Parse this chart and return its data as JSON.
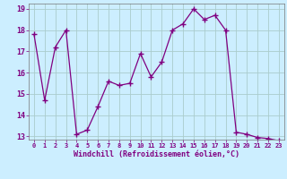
{
  "x": [
    0,
    1,
    2,
    3,
    4,
    5,
    6,
    7,
    8,
    9,
    10,
    11,
    12,
    13,
    14,
    15,
    16,
    17,
    18,
    19,
    20,
    21,
    22,
    23
  ],
  "y": [
    17.8,
    14.7,
    17.2,
    18.0,
    13.1,
    13.3,
    14.4,
    15.6,
    15.4,
    15.5,
    16.9,
    15.8,
    16.5,
    18.0,
    18.3,
    19.0,
    18.5,
    18.7,
    18.0,
    13.2,
    13.1,
    12.95,
    12.9,
    12.8
  ],
  "line_color": "#800080",
  "marker_color": "#800080",
  "bg_color": "#cceeff",
  "grid_color": "#aacccc",
  "xlabel": "Windchill (Refroidissement éolien,°C)",
  "xlabel_color": "#800080",
  "tick_color": "#800080",
  "ylim": [
    13,
    19
  ],
  "xlim": [
    0,
    23
  ],
  "yticks": [
    13,
    14,
    15,
    16,
    17,
    18,
    19
  ],
  "xticks": [
    0,
    1,
    2,
    3,
    4,
    5,
    6,
    7,
    8,
    9,
    10,
    11,
    12,
    13,
    14,
    15,
    16,
    17,
    18,
    19,
    20,
    21,
    22,
    23
  ]
}
